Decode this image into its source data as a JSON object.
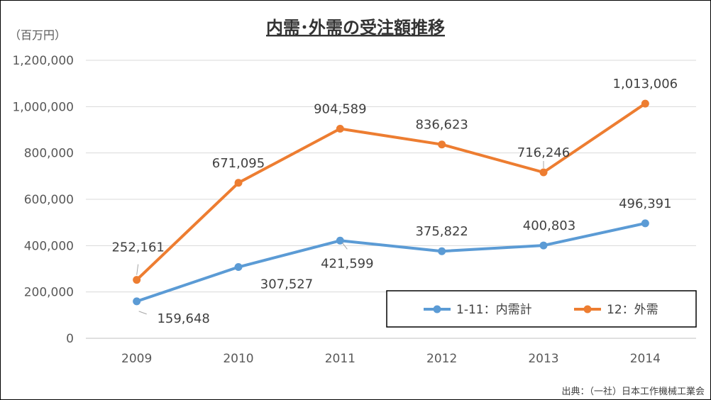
{
  "chart_data": {
    "type": "line",
    "title": "内需･外需の受注額推移",
    "unit_label": "（百万円）",
    "x": [
      "2009",
      "2010",
      "2011",
      "2012",
      "2013",
      "2014"
    ],
    "ylim": [
      0,
      1200000
    ],
    "yticks": [
      0,
      200000,
      400000,
      600000,
      800000,
      1000000,
      1200000
    ],
    "ytick_labels": [
      "0",
      "200,000",
      "400,000",
      "600,000",
      "800,000",
      "1,000,000",
      "1,200,000"
    ],
    "grid": true,
    "legend_position": "bottom-right",
    "series": [
      {
        "name": "1-11：内需計",
        "color": "#5B9BD5",
        "values": [
          159648,
          307527,
          421599,
          375822,
          400803,
          496391
        ],
        "labels": [
          "159,648",
          "307,527",
          "421,599",
          "375,822",
          "400,803",
          "496,391"
        ]
      },
      {
        "name": "12：外需",
        "color": "#ED7D31",
        "values": [
          252161,
          671095,
          904589,
          836623,
          716246,
          1013006
        ],
        "labels": [
          "252,161",
          "671,095",
          "904,589",
          "836,623",
          "716,246",
          "1,013,006"
        ]
      }
    ],
    "source": "出典：（一社）日本工作機械工業会"
  }
}
